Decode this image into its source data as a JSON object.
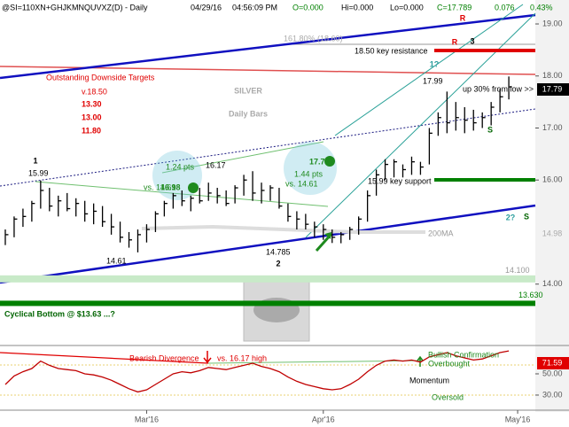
{
  "chart_data": {
    "type": "ohlc",
    "header": [
      "@SI=110XN+GHJKMNQUVXZ(D) - Daily",
      "04/29/16",
      "04:56:09 PM",
      "O=0.000",
      "Hi=0.000",
      "Lo=0.000",
      "C=17.789",
      "0.076",
      "0.43%"
    ],
    "title": "SILVER",
    "subtitle": "Daily Bars",
    "color": "#000000",
    "high": [
      15.05,
      15.3,
      15.45,
      15.6,
      15.99,
      15.85,
      15.7,
      15.75,
      15.65,
      15.6,
      15.55,
      15.5,
      15.35,
      15.2,
      15.0,
      15.05,
      15.15,
      15.4,
      15.6,
      15.75,
      15.8,
      15.7,
      15.85,
      15.95,
      15.85,
      15.8,
      15.9,
      16.1,
      16.17,
      15.95,
      15.9,
      15.85,
      15.55,
      15.4,
      15.35,
      15.2,
      15.15,
      15.05,
      15.0,
      15.1,
      15.3,
      15.8,
      16.2,
      16.4,
      16.4,
      16.3,
      16.45,
      16.35,
      17.0,
      17.3,
      17.7,
      17.5,
      17.4,
      17.35,
      17.3,
      17.5,
      17.75,
      17.99
    ],
    "low": [
      14.75,
      14.9,
      15.1,
      15.2,
      15.45,
      15.4,
      15.3,
      15.4,
      15.3,
      15.2,
      15.15,
      15.1,
      14.95,
      14.8,
      14.7,
      14.61,
      14.8,
      15.0,
      15.3,
      15.45,
      15.5,
      15.4,
      15.55,
      15.6,
      15.55,
      15.5,
      15.55,
      15.7,
      15.6,
      15.55,
      15.6,
      15.45,
      15.2,
      15.05,
      15.05,
      14.9,
      14.85,
      14.79,
      14.785,
      14.85,
      14.95,
      15.2,
      15.7,
      16.0,
      16.05,
      16.05,
      16.1,
      16.1,
      16.3,
      16.85,
      16.9,
      16.95,
      16.9,
      16.95,
      17.0,
      17.05,
      17.3,
      17.55
    ],
    "close": [
      14.95,
      15.25,
      15.3,
      15.55,
      15.8,
      15.5,
      15.6,
      15.45,
      15.55,
      15.35,
      15.4,
      15.2,
      15.1,
      14.9,
      14.85,
      14.95,
      15.05,
      15.35,
      15.55,
      15.7,
      15.6,
      15.65,
      15.6,
      15.75,
      15.7,
      15.55,
      15.85,
      16.0,
      15.75,
      15.8,
      15.85,
      15.5,
      15.3,
      15.25,
      15.15,
      15.1,
      15.05,
      14.9,
      14.95,
      15.05,
      15.25,
      15.7,
      16.1,
      16.3,
      16.35,
      16.2,
      16.35,
      16.25,
      16.9,
      17.2,
      17.1,
      17.2,
      17.15,
      17.1,
      17.2,
      17.4,
      17.6,
      17.79
    ],
    "ylim": [
      12.82,
      19.46
    ],
    "yticks": [
      {
        "value": 19,
        "label": "19.00"
      },
      {
        "value": 18,
        "label": "18.00"
      },
      {
        "value": 17,
        "label": "17.00"
      },
      {
        "value": 16,
        "label": "16.00"
      },
      {
        "value": 14,
        "label": "14.00"
      }
    ],
    "xlim": [
      -0.6,
      60
    ],
    "xticks": [
      {
        "value": 16,
        "label": "Mar'16"
      },
      {
        "value": 36,
        "label": "Apr'16"
      },
      {
        "value": 58,
        "label": "May'16"
      }
    ],
    "levels": [
      {
        "value": 14.1,
        "label": "14.100"
      },
      {
        "value": 13.63,
        "label": "13.630"
      }
    ],
    "momentum": {
      "name": "Momentum",
      "color": "#c00000",
      "values": [
        40,
        48,
        52,
        55,
        62,
        58,
        55,
        54,
        53,
        50,
        49,
        47,
        44,
        40,
        36,
        33,
        35,
        40,
        45,
        50,
        52,
        51,
        53,
        56,
        55,
        54,
        56,
        58,
        60,
        57,
        55,
        52,
        47,
        43,
        40,
        38,
        36,
        35,
        36,
        40,
        45,
        52,
        58,
        62,
        63,
        62,
        63,
        61,
        66,
        68,
        70,
        67,
        65,
        63,
        64,
        67,
        70,
        71.59
      ],
      "ylim": [
        18.3,
        75
      ],
      "yticks": [
        {
          "value": 50,
          "label": "50.00"
        },
        {
          "value": 30,
          "label": "30.00"
        }
      ]
    },
    "annotations": [
      "Outstanding Downside Targets",
      "v.18.50",
      "13.30",
      "13.00",
      "11.80",
      "1",
      "15.99",
      "1.24 pts",
      "vs. 14.61",
      "16.98",
      "16.17",
      "14.61",
      "14.785",
      "2",
      "17.73",
      "1.44 pts",
      "vs. 14.61",
      "161.80% (18.60)",
      "18.50 key resistance",
      "R",
      "R",
      "3",
      "1?",
      "17.99",
      "up 30% from low >>",
      "17.79",
      "S",
      "15.99 key support",
      "2?",
      "S",
      "200MA",
      "14.98",
      "Cyclical Bottom @ $13.63  ...?",
      "Bearish Divergence",
      "vs. 16.17 high",
      "Bullish Confirmation",
      "Overbought",
      "Oversold",
      "71.59"
    ]
  }
}
